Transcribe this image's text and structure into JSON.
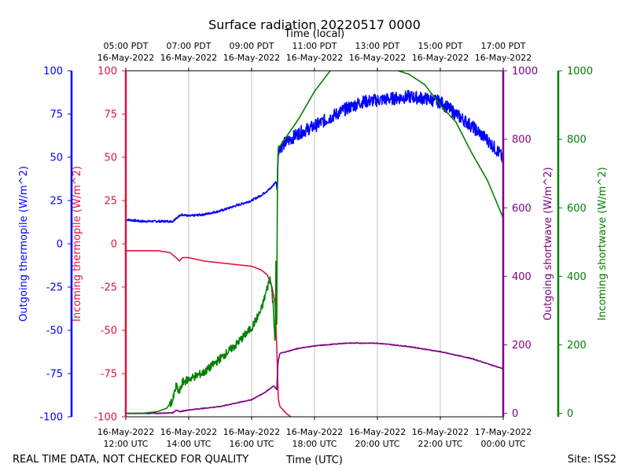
{
  "page": {
    "footer_left": "REAL TIME DATA, NOT CHECKED FOR QUALITY",
    "footer_right": "Site: ISS2"
  },
  "chart_data": {
    "type": "line",
    "title": "Surface radiation 20220517 0000",
    "xlabel": "Time (UTC)",
    "x2label": "Time (local)",
    "x_range": [
      "2022-05-16 12:00 UTC",
      "2022-05-17 00:00 UTC"
    ],
    "bottom_ticks": [
      {
        "t": 12,
        "line1": "16-May-2022",
        "line2": "12:00 UTC"
      },
      {
        "t": 14,
        "line1": "16-May-2022",
        "line2": "14:00 UTC"
      },
      {
        "t": 16,
        "line1": "16-May-2022",
        "line2": "16:00 UTC"
      },
      {
        "t": 18,
        "line1": "16-May-2022",
        "line2": "18:00 UTC"
      },
      {
        "t": 20,
        "line1": "16-May-2022",
        "line2": "20:00 UTC"
      },
      {
        "t": 22,
        "line1": "16-May-2022",
        "line2": "22:00 UTC"
      },
      {
        "t": 24,
        "line1": "17-May-2022",
        "line2": "00:00 UTC"
      }
    ],
    "top_ticks": [
      {
        "t": 12,
        "line1": "05:00 PDT",
        "line2": "16-May-2022"
      },
      {
        "t": 14,
        "line1": "07:00 PDT",
        "line2": "16-May-2022"
      },
      {
        "t": 16,
        "line1": "09:00 PDT",
        "line2": "16-May-2022"
      },
      {
        "t": 18,
        "line1": "11:00 PDT",
        "line2": "16-May-2022"
      },
      {
        "t": 20,
        "line1": "13:00 PDT",
        "line2": "16-May-2022"
      },
      {
        "t": 22,
        "line1": "15:00 PDT",
        "line2": "16-May-2022"
      },
      {
        "t": 24,
        "line1": "17:00 PDT",
        "line2": "16-May-2022"
      }
    ],
    "grid": "vertical",
    "axes": {
      "outgoing_thermopile": {
        "label": "Outgoing thermopile (W/m^2)",
        "ylim": [
          -100,
          100
        ],
        "ticks": [
          "-100",
          "-75",
          "-50",
          "-25",
          "0",
          "25",
          "50",
          "75",
          "100"
        ],
        "color": "#0000ff"
      },
      "incoming_thermopile": {
        "label": "Incoming thermopile (W/m^2)",
        "ylim": [
          -100,
          100
        ],
        "ticks": [
          "-100",
          "-75",
          "-50",
          "-25",
          "0",
          "25",
          "50",
          "75",
          "100"
        ],
        "color": "#dc143c"
      },
      "outgoing_shortwave": {
        "label": "Outgoing shortwave (W/m^2)",
        "ylim": [
          -10,
          1000
        ],
        "ticks": [
          "0",
          "200",
          "400",
          "600",
          "800",
          "1000"
        ],
        "color": "#800080"
      },
      "incoming_shortwave": {
        "label": "Incoming shortwave (W/m^2)",
        "ylim": [
          -10,
          1000
        ],
        "ticks": [
          "0",
          "200",
          "400",
          "600",
          "800",
          "1000"
        ],
        "color": "#008000"
      }
    },
    "series": [
      {
        "axis": "outgoing_thermopile",
        "color": "#0000ff",
        "noise": 2.5,
        "x": [
          12.0,
          12.5,
          13.0,
          13.5,
          13.6,
          13.8,
          14.0,
          14.5,
          15.0,
          15.5,
          16.0,
          16.3,
          16.6,
          16.78,
          16.82,
          16.84,
          16.9,
          17.2,
          17.5,
          18.0,
          18.5,
          19.0,
          19.5,
          20.0,
          20.5,
          21.0,
          21.5,
          22.0,
          22.5,
          23.0,
          23.5,
          23.9,
          24.0
        ],
        "y": [
          14,
          13,
          13,
          13,
          15,
          17,
          16,
          17,
          19,
          22,
          25,
          28,
          32,
          36,
          30,
          50,
          56,
          60,
          64,
          68,
          73,
          78,
          82,
          83,
          84,
          85,
          84,
          82,
          75,
          68,
          60,
          52,
          48
        ]
      },
      {
        "axis": "incoming_thermopile",
        "color": "#dc143c",
        "noise": 0,
        "x": [
          12.0,
          13.0,
          13.4,
          13.6,
          13.7,
          13.8,
          14.0,
          14.5,
          15.0,
          15.5,
          16.0,
          16.3,
          16.5,
          16.65,
          16.75,
          16.8,
          16.85,
          16.9,
          17.0,
          17.1,
          17.25
        ],
        "y": [
          -4,
          -4,
          -5,
          -8,
          -10,
          -8,
          -8,
          -10,
          -11,
          -12,
          -13,
          -15,
          -18,
          -25,
          -35,
          -60,
          -90,
          -94,
          -96,
          -98,
          -100
        ]
      },
      {
        "axis": "outgoing_shortwave",
        "color": "#800080",
        "noise": 2,
        "x": [
          12.0,
          13.0,
          13.5,
          13.6,
          13.7,
          14.0,
          14.5,
          15.0,
          15.5,
          16.0,
          16.4,
          16.7,
          16.8,
          16.84,
          16.9,
          17.5,
          18.0,
          19.0,
          20.0,
          21.0,
          22.0,
          23.0,
          24.0
        ],
        "y": [
          0,
          0,
          2,
          10,
          5,
          10,
          15,
          20,
          30,
          40,
          60,
          80,
          70,
          150,
          175,
          190,
          197,
          205,
          205,
          195,
          180,
          160,
          130
        ]
      },
      {
        "axis": "incoming_shortwave",
        "color": "#008000",
        "noise": 12,
        "x": [
          12.0,
          12.5,
          13.0,
          13.3,
          13.5,
          13.6,
          13.7,
          13.8,
          14.0,
          14.5,
          15.0,
          15.5,
          16.0,
          16.3,
          16.6,
          16.7,
          16.75,
          16.78,
          16.8,
          16.82,
          16.85,
          16.9,
          17.5,
          18.0,
          18.5,
          19.0,
          19.5,
          20.0,
          20.5,
          21.0,
          21.5,
          22.0,
          22.5,
          23.0,
          23.5,
          24.0
        ],
        "y": [
          0,
          0,
          5,
          15,
          40,
          80,
          60,
          90,
          100,
          120,
          160,
          200,
          250,
          300,
          400,
          300,
          200,
          480,
          260,
          700,
          780,
          780,
          860,
          940,
          1000,
          1010,
          1010,
          1010,
          1005,
          990,
          960,
          900,
          850,
          760,
          680,
          570
        ]
      }
    ]
  }
}
